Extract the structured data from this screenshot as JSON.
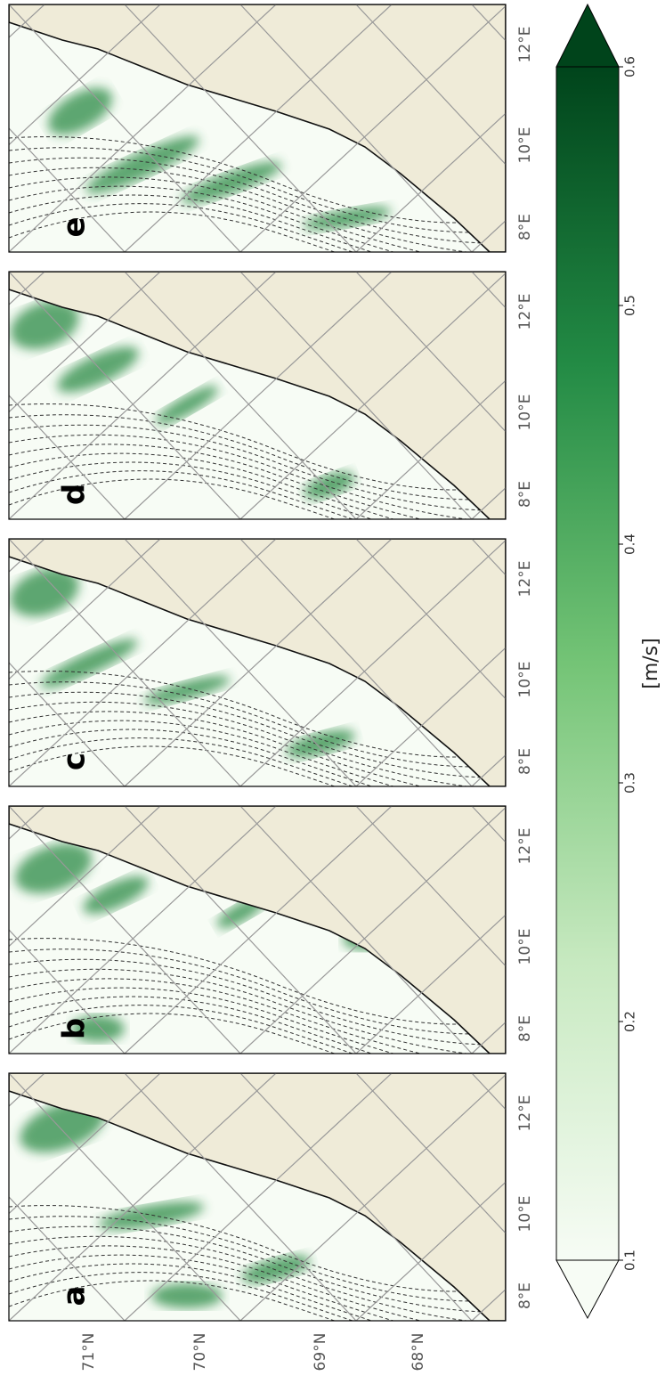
{
  "panels": [
    {
      "label": "e"
    },
    {
      "label": "d"
    },
    {
      "label": "c"
    },
    {
      "label": "b"
    },
    {
      "label": "a"
    }
  ],
  "lon_labels": [
    "8°E",
    "10°E",
    "12°E"
  ],
  "lat_labels": [
    "71°N",
    "70°N",
    "69°N",
    "68°N"
  ],
  "colorbar": {
    "label": "[m/s]",
    "lim": [
      0.1,
      0.6
    ],
    "ticks": [
      0.1,
      0.2,
      0.3,
      0.4,
      0.5,
      0.6
    ],
    "color_low": "#f7fcf5",
    "color_high": "#00441b"
  }
}
